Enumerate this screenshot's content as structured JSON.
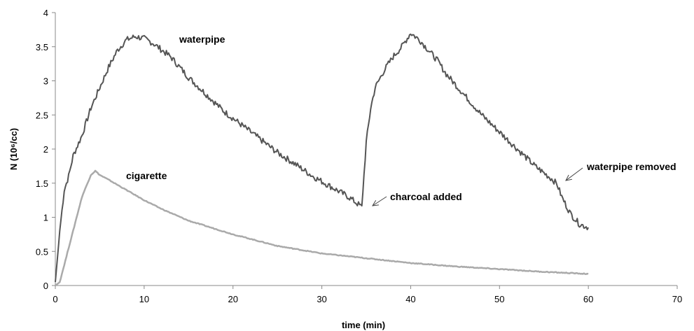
{
  "chart_data": {
    "type": "line",
    "title": "",
    "xlabel": "time (min)",
    "ylabel": "N (10⁶/cc)",
    "xlim": [
      0,
      70
    ],
    "ylim": [
      0,
      4
    ],
    "x_ticks": [
      "0",
      "10",
      "20",
      "30",
      "40",
      "50",
      "60",
      "70"
    ],
    "y_ticks": [
      "0",
      "0.5",
      "1",
      "1.5",
      "2",
      "2.5",
      "3",
      "3.5",
      "4"
    ],
    "grid": false,
    "legend": "none",
    "series": [
      {
        "name": "waterpipe",
        "color": "#555555",
        "x": [
          0,
          0.5,
          1,
          1.5,
          2,
          3,
          4,
          5,
          6,
          7,
          8,
          9,
          10,
          11,
          12,
          13,
          14,
          15,
          17,
          19,
          21,
          23,
          25,
          27,
          29,
          31,
          33,
          34,
          34.5,
          35,
          35.5,
          36,
          37,
          38,
          39,
          40,
          41,
          42,
          43,
          44,
          46,
          48,
          50,
          52,
          54,
          56,
          56.5,
          57,
          58,
          59,
          60
        ],
        "y": [
          0.05,
          0.8,
          1.4,
          1.6,
          1.9,
          2.2,
          2.6,
          2.9,
          3.2,
          3.45,
          3.6,
          3.65,
          3.62,
          3.55,
          3.45,
          3.35,
          3.2,
          3.05,
          2.8,
          2.55,
          2.35,
          2.15,
          1.95,
          1.78,
          1.6,
          1.45,
          1.3,
          1.2,
          1.15,
          2.1,
          2.6,
          2.9,
          3.15,
          3.35,
          3.5,
          3.7,
          3.6,
          3.45,
          3.3,
          3.1,
          2.8,
          2.5,
          2.25,
          2.0,
          1.75,
          1.55,
          1.48,
          1.3,
          1.05,
          0.9,
          0.85
        ]
      },
      {
        "name": "cigarette",
        "color": "#aaaaaa",
        "x": [
          0,
          0.5,
          1,
          2,
          3,
          4,
          4.5,
          5,
          6,
          8,
          10,
          12,
          15,
          20,
          25,
          30,
          35,
          40,
          45,
          50,
          55,
          60
        ],
        "y": [
          0,
          0.05,
          0.3,
          0.8,
          1.3,
          1.62,
          1.68,
          1.62,
          1.55,
          1.4,
          1.25,
          1.12,
          0.95,
          0.75,
          0.58,
          0.47,
          0.4,
          0.33,
          0.28,
          0.24,
          0.2,
          0.17
        ]
      }
    ],
    "annotations": [
      {
        "id": "waterpipe",
        "text": "waterpipe"
      },
      {
        "id": "cigarette",
        "text": "cigarette"
      },
      {
        "id": "charcoal",
        "text": "charcoal added"
      },
      {
        "id": "removed",
        "text": "waterpipe removed"
      }
    ]
  }
}
